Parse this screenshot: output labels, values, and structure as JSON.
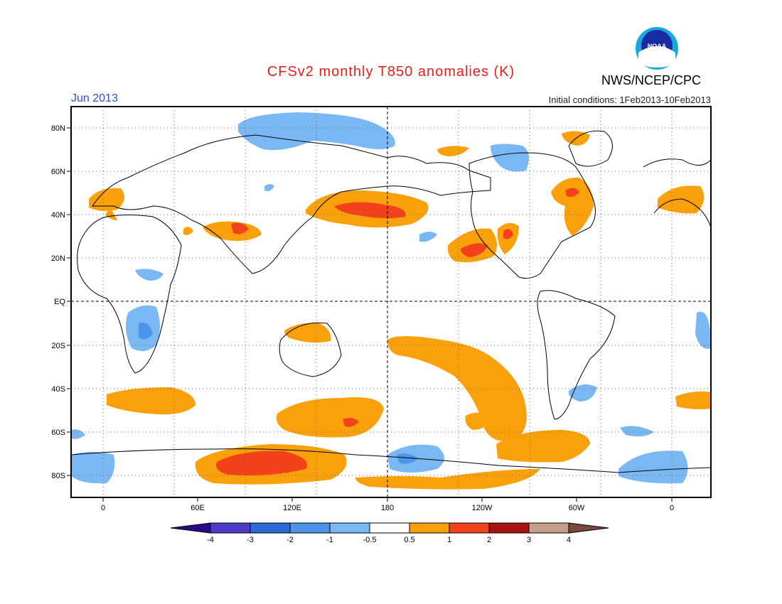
{
  "header": {
    "title": "CFSv2 monthly T850 anomalies (K)",
    "organization": "NWS/NCEP/CPC",
    "month": "Jun 2013",
    "initial_conditions": "Initial conditions: 1Feb2013-10Feb2013",
    "logo_text": "NOAA"
  },
  "map": {
    "lat_labels": [
      "80N",
      "60N",
      "40N",
      "20N",
      "EQ",
      "20S",
      "40S",
      "60S",
      "80S"
    ],
    "lon_labels": [
      "0",
      "60E",
      "120E",
      "180",
      "120W",
      "60W",
      "0"
    ]
  },
  "colorbar": {
    "ticks": [
      "-4",
      "-3",
      "-2",
      "-1",
      "-0.5",
      "0.5",
      "1",
      "2",
      "3",
      "4"
    ],
    "colors": [
      "#2a0a8a",
      "#4a3cc8",
      "#2a6ad8",
      "#4a94ea",
      "#7ab8f4",
      "#ffffff",
      "#f9a00a",
      "#f2421b",
      "#a8120f",
      "#c4a08c",
      "#7a4a3a"
    ]
  },
  "palette": {
    "warm1": "#f9a00a",
    "warm2": "#f2421b",
    "cool1": "#7ab8f4",
    "cool2": "#4a94ea"
  }
}
